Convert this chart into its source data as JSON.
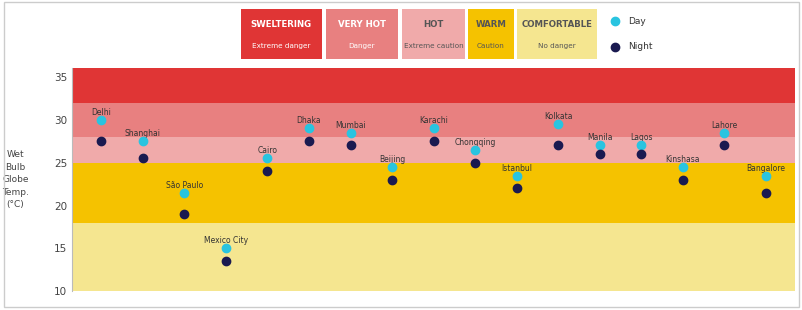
{
  "cities": [
    {
      "name": "Delhi",
      "x": 1,
      "day": 30.0,
      "night": 27.5
    },
    {
      "name": "Shanghai",
      "x": 2,
      "day": 27.5,
      "night": 25.5
    },
    {
      "name": "São Paulo",
      "x": 3,
      "day": 21.5,
      "night": 19.0
    },
    {
      "name": "Mexico City",
      "x": 4,
      "day": 15.0,
      "night": 13.5
    },
    {
      "name": "Cairo",
      "x": 5,
      "day": 25.5,
      "night": 24.0
    },
    {
      "name": "Dhaka",
      "x": 6,
      "day": 29.0,
      "night": 27.5
    },
    {
      "name": "Mumbai",
      "x": 7,
      "day": 28.5,
      "night": 27.0
    },
    {
      "name": "Beijing",
      "x": 8,
      "day": 24.5,
      "night": 23.0
    },
    {
      "name": "Karachi",
      "x": 9,
      "day": 29.0,
      "night": 27.5
    },
    {
      "name": "Chongqing",
      "x": 10,
      "day": 26.5,
      "night": 25.0
    },
    {
      "name": "Istanbul",
      "x": 11,
      "day": 23.5,
      "night": 22.0
    },
    {
      "name": "Kolkata",
      "x": 12,
      "day": 29.5,
      "night": 27.0
    },
    {
      "name": "Manila",
      "x": 13,
      "day": 27.0,
      "night": 26.0
    },
    {
      "name": "Lagos",
      "x": 14,
      "day": 27.0,
      "night": 26.0
    },
    {
      "name": "Kinshasa",
      "x": 15,
      "day": 24.5,
      "night": 23.0
    },
    {
      "name": "Lahore",
      "x": 16,
      "day": 28.5,
      "night": 27.0
    },
    {
      "name": "Bangalore",
      "x": 17,
      "day": 23.5,
      "night": 21.5
    }
  ],
  "zones": [
    {
      "label": "SWELTERING",
      "sublabel": "Extreme danger",
      "ymin": 32,
      "ymax": 36,
      "color": "#e03535",
      "text_color": "#ffffff"
    },
    {
      "label": "VERY HOT",
      "sublabel": "Danger",
      "ymin": 28,
      "ymax": 32,
      "color": "#e88080",
      "text_color": "#ffffff"
    },
    {
      "label": "HOT",
      "sublabel": "Extreme caution",
      "ymin": 25,
      "ymax": 28,
      "color": "#f0aaaa",
      "text_color": "#555555"
    },
    {
      "label": "WARM",
      "sublabel": "Caution",
      "ymin": 18,
      "ymax": 25,
      "color": "#f5c200",
      "text_color": "#555555"
    },
    {
      "label": "COMFORTABLE",
      "sublabel": "No danger",
      "ymin": 10,
      "ymax": 18,
      "color": "#f5e690",
      "text_color": "#555555"
    }
  ],
  "day_color": "#29c4e0",
  "night_color": "#1a1a50",
  "ylim": [
    10,
    36
  ],
  "yticks": [
    10,
    15,
    20,
    25,
    30,
    35
  ],
  "ylabel": "Wet\nBulb\nGlobe\nTemp.\n(°C)"
}
